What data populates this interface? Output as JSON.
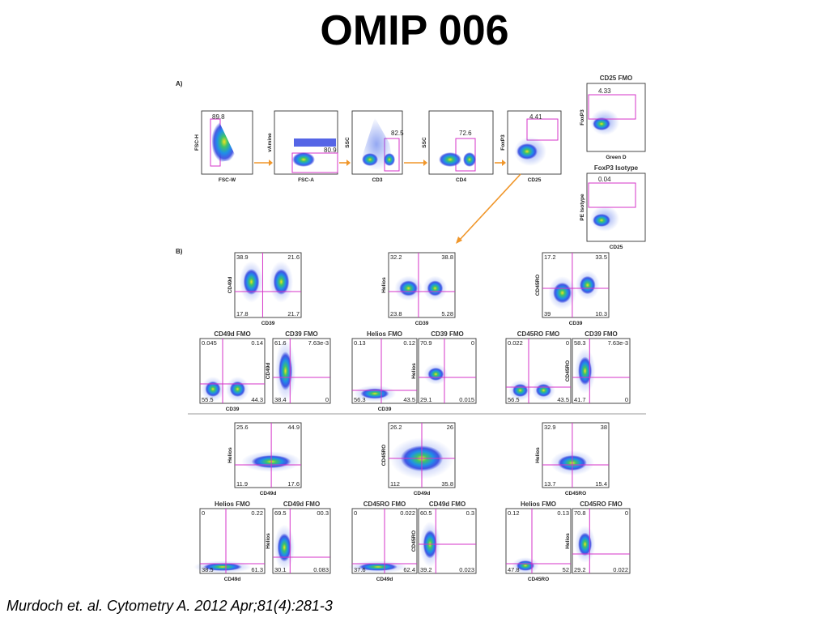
{
  "slide": {
    "title": "OMIP 006",
    "citation": "Murdoch et. al. Cytometry A. 2012 Apr;81(4):281-3"
  },
  "panel_labels": {
    "a": "A)",
    "b": "B)"
  },
  "colors": {
    "gate": "#d633c8",
    "arrow": "#f0962a",
    "axis": "#333333",
    "cell_low": "#3040e0",
    "cell_high": "#e8d820"
  },
  "panel_a": {
    "plots": [
      {
        "x": "FSC-W",
        "y": "FSC-H",
        "values": [
          "89.8"
        ]
      },
      {
        "x": "FSC-A",
        "y": "vAmine",
        "values": [
          "80.9"
        ]
      },
      {
        "x": "CD3",
        "y": "SSC",
        "values": [
          "82.5"
        ]
      },
      {
        "x": "CD4",
        "y": "SSC",
        "values": [
          "72.6"
        ]
      },
      {
        "x": "CD25",
        "y": "FoxP3",
        "values": [
          "4.41"
        ]
      }
    ],
    "controls": [
      {
        "heading": "CD25 FMO",
        "x": "Green D",
        "y": "FoxP3",
        "values": [
          "4.33"
        ]
      },
      {
        "heading": "FoxP3 Isotype",
        "x": "CD25",
        "y": "PE Isotype",
        "values": [
          "0.04"
        ]
      }
    ]
  },
  "panel_b": {
    "groups": [
      {
        "main": {
          "x": "CD39",
          "y": "CD49d",
          "q": [
            "38.9",
            "21.6",
            "17.8",
            "21.7"
          ]
        },
        "fmos": [
          {
            "heading": "CD49d FMO",
            "x": "CD39",
            "y": "",
            "q": [
              "0.045",
              "0.14",
              "55.5",
              "44.3"
            ]
          },
          {
            "heading": "CD39 FMO",
            "x": "",
            "y": "CD49d",
            "q": [
              "61.6",
              "7.63e-3",
              "38.4",
              "0"
            ]
          }
        ]
      },
      {
        "main": {
          "x": "CD39",
          "y": "Helios",
          "q": [
            "32.2",
            "38.8",
            "23.8",
            "5.28"
          ]
        },
        "fmos": [
          {
            "heading": "Helios FMO",
            "x": "CD39",
            "y": "",
            "q": [
              "0.13",
              "0.12",
              "56.3",
              "43.5"
            ]
          },
          {
            "heading": "CD39 FMO",
            "x": "",
            "y": "Helios",
            "q": [
              "70.9",
              "0",
              "29.1",
              "0.015"
            ]
          }
        ]
      },
      {
        "main": {
          "x": "CD39",
          "y": "CD45RO",
          "q": [
            "17.2",
            "33.5",
            "39",
            "10.3"
          ]
        },
        "fmos": [
          {
            "heading": "CD45RO FMO",
            "x": "",
            "y": "",
            "q": [
              "0.022",
              "0",
              "56.5",
              "43.5"
            ]
          },
          {
            "heading": "CD39 FMO",
            "x": "",
            "y": "CD45RO",
            "q": [
              "58.3",
              "7.63e-3",
              "41.7",
              "0"
            ]
          }
        ]
      },
      {
        "main": {
          "x": "CD49d",
          "y": "Helios",
          "q": [
            "25.6",
            "44.9",
            "11.9",
            "17.6"
          ]
        },
        "fmos": [
          {
            "heading": "Helios FMO",
            "x": "CD49d",
            "y": "",
            "q": [
              "0",
              "0.22",
              "38.5",
              "61.3"
            ]
          },
          {
            "heading": "CD49d FMO",
            "x": "",
            "y": "Helios",
            "q": [
              "69.5",
              "00.3",
              "30.1",
              "0.083"
            ]
          }
        ]
      },
      {
        "main": {
          "x": "CD49d",
          "y": "CD45RO",
          "q": [
            "26.2",
            "26",
            "112",
            "35.8"
          ]
        },
        "fmos": [
          {
            "heading": "CD45RO FMO",
            "x": "CD49d",
            "y": "",
            "q": [
              "0",
              "0.022",
              "37.6",
              "62.4"
            ]
          },
          {
            "heading": "CD49d FMO",
            "x": "",
            "y": "CD45RO",
            "q": [
              "60.5",
              "0.3",
              "39.2",
              "0.023"
            ]
          }
        ]
      },
      {
        "main": {
          "x": "CD45RO",
          "y": "Helios",
          "q": [
            "32.9",
            "38",
            "13.7",
            "15.4"
          ]
        },
        "fmos": [
          {
            "heading": "Helios FMO",
            "x": "CD45RO",
            "y": "",
            "q": [
              "0.12",
              "0.13",
              "47.8",
              "52"
            ]
          },
          {
            "heading": "CD45RO FMO",
            "x": "",
            "y": "Helios",
            "q": [
              "70.8",
              "0",
              "29.2",
              "0.022"
            ]
          }
        ]
      }
    ]
  }
}
